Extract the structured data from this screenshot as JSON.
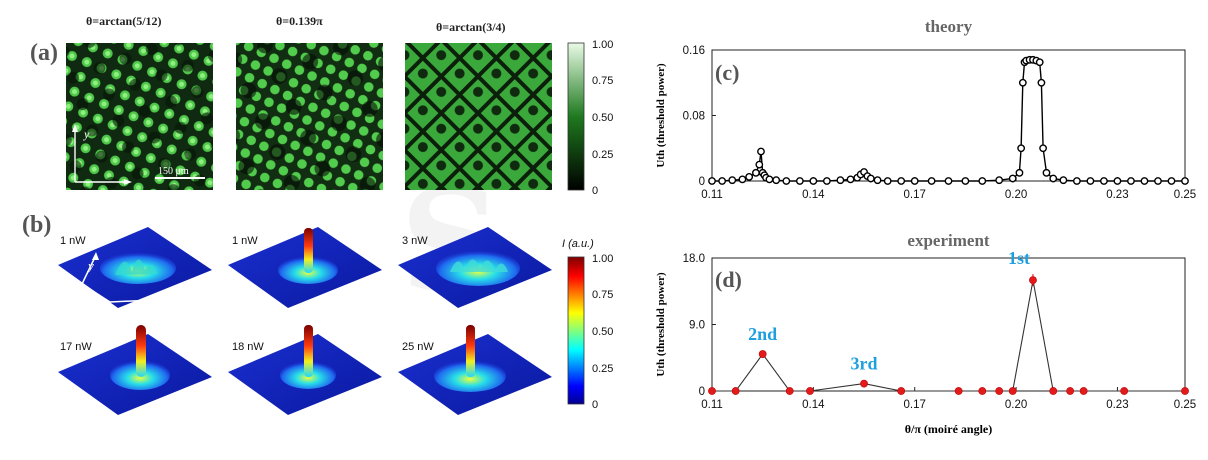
{
  "panel_a": {
    "letter": "(a)",
    "titles": [
      "θ=arctan(5/12)",
      "θ=0.139π",
      "θ=arctan(3/4)"
    ],
    "axis_y": "y",
    "scale_bar": "150 μm",
    "colorbar_ticks": [
      "1.00",
      "0.75",
      "0.50",
      "0.25",
      "0"
    ]
  },
  "panel_b": {
    "letter": "(b)",
    "powers": [
      "1 nW",
      "1 nW",
      "3 nW",
      "17 nW",
      "18 nW",
      "25 nW"
    ],
    "axis_x": "x",
    "axis_y": "y",
    "colorbar_label": "I (a.u.)",
    "colorbar_ticks": [
      "1.00",
      "0.75",
      "0.50",
      "0.25",
      "0"
    ]
  },
  "chart_data": [
    {
      "type": "line",
      "panel": "(c)",
      "title": "theory",
      "xlabel": "",
      "ylabel": "Uth (threshold power)",
      "xlim": [
        0.11,
        0.25
      ],
      "ylim": [
        0,
        0.16
      ],
      "xticks": [
        "0.11",
        "0.14",
        "0.17",
        "0.20",
        "0.23",
        "0.25"
      ],
      "yticks": [
        "0",
        "0.08",
        "0.16"
      ],
      "x": [
        0.11,
        0.113,
        0.116,
        0.119,
        0.121,
        0.123,
        0.124,
        0.1245,
        0.125,
        0.1255,
        0.126,
        0.127,
        0.129,
        0.132,
        0.136,
        0.14,
        0.144,
        0.148,
        0.151,
        0.153,
        0.154,
        0.155,
        0.156,
        0.157,
        0.159,
        0.162,
        0.166,
        0.17,
        0.175,
        0.18,
        0.185,
        0.19,
        0.195,
        0.199,
        0.201,
        0.2015,
        0.202,
        0.2025,
        0.203,
        0.204,
        0.205,
        0.206,
        0.207,
        0.2075,
        0.208,
        0.209,
        0.211,
        0.214,
        0.218,
        0.222,
        0.226,
        0.23,
        0.234,
        0.238,
        0.242,
        0.246,
        0.25
      ],
      "values": [
        0.0,
        0.0,
        0.001,
        0.002,
        0.005,
        0.01,
        0.02,
        0.036,
        0.01,
        0.007,
        0.004,
        0.002,
        0.001,
        0.0,
        0.0,
        0.0,
        0.0,
        0.001,
        0.002,
        0.004,
        0.008,
        0.011,
        0.006,
        0.003,
        0.001,
        0.0,
        0.0,
        0.0,
        0.0,
        0.0,
        0.0,
        0.0,
        0.001,
        0.003,
        0.01,
        0.04,
        0.12,
        0.145,
        0.147,
        0.148,
        0.148,
        0.147,
        0.145,
        0.12,
        0.04,
        0.01,
        0.003,
        0.001,
        0.0,
        0.0,
        0.0,
        0.0,
        0.0,
        0.0,
        0.0,
        0.0,
        0.0
      ],
      "color": "#000000"
    },
    {
      "type": "line",
      "panel": "(d)",
      "title": "experiment",
      "xlabel": "θ/π (moiré angle)",
      "ylabel": "Uth (threshold power)",
      "xlim": [
        0.11,
        0.25
      ],
      "ylim": [
        0,
        18
      ],
      "xticks": [
        "0.11",
        "0.14",
        "0.17",
        "0.20",
        "0.23",
        "0.25"
      ],
      "yticks": [
        "0",
        "9.0",
        "18.0"
      ],
      "x": [
        0.11,
        0.117,
        0.125,
        0.133,
        0.139,
        0.155,
        0.166,
        0.183,
        0.19,
        0.195,
        0.199,
        0.205,
        0.211,
        0.216,
        0.22,
        0.232,
        0.25
      ],
      "values": [
        0,
        0,
        5,
        0,
        0,
        1,
        0,
        0,
        0,
        0,
        0,
        15,
        0,
        0,
        0,
        0,
        0
      ],
      "color": "#e31a1c",
      "annotations": [
        {
          "text": "2nd",
          "x": 0.125,
          "y": 5
        },
        {
          "text": "3rd",
          "x": 0.155,
          "y": 1
        },
        {
          "text": "1st",
          "x": 0.205,
          "y": 15
        }
      ]
    }
  ]
}
